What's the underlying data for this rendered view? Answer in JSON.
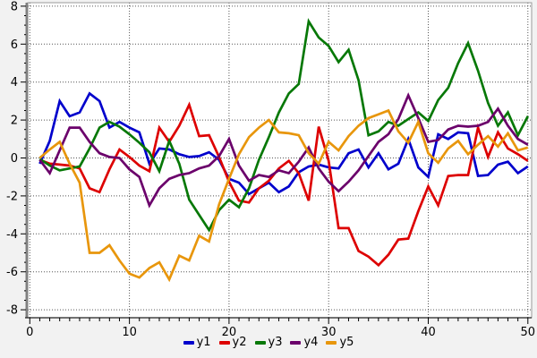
{
  "chart_data": {
    "type": "line",
    "title": "",
    "xlabel": "",
    "ylabel": "",
    "grid": true,
    "legend_position": "bottom",
    "x_ticks": [
      0,
      10,
      20,
      30,
      40,
      50
    ],
    "y_ticks": [
      -8,
      -6,
      -4,
      -2,
      0,
      2,
      4,
      6,
      8
    ],
    "xlim": [
      -0.2,
      50.4
    ],
    "ylim": [
      -8.4,
      8.2
    ],
    "x": [
      1,
      2,
      3,
      4,
      5,
      6,
      7,
      8,
      9,
      10,
      11,
      12,
      13,
      14,
      15,
      16,
      17,
      18,
      19,
      20,
      21,
      22,
      23,
      24,
      25,
      26,
      27,
      28,
      29,
      30,
      31,
      32,
      33,
      34,
      35,
      36,
      37,
      38,
      39,
      40,
      41,
      42,
      43,
      44,
      45,
      46,
      47,
      48,
      49,
      50
    ],
    "series": [
      {
        "name": "y1",
        "color": "#0000cc",
        "values": [
          -0.3,
          0.9,
          3.0,
          2.2,
          2.4,
          3.4,
          3.0,
          1.6,
          1.9,
          1.6,
          1.35,
          -0.3,
          0.5,
          0.45,
          0.2,
          0.05,
          0.1,
          0.3,
          -0.1,
          -1.1,
          -1.3,
          -1.9,
          -1.6,
          -1.3,
          -1.8,
          -1.5,
          -0.75,
          -0.45,
          -0.35,
          -0.5,
          -0.55,
          0.25,
          0.45,
          -0.5,
          0.25,
          -0.6,
          -0.3,
          1.0,
          -0.5,
          -1.0,
          1.25,
          1.0,
          1.35,
          1.3,
          -0.95,
          -0.9,
          -0.35,
          -0.2,
          -0.8,
          -0.45
        ]
      },
      {
        "name": "y2",
        "color": "#dd0000",
        "values": [
          -0.1,
          -0.3,
          -0.35,
          -0.4,
          -0.55,
          -1.6,
          -1.8,
          -0.6,
          0.45,
          0.05,
          -0.4,
          -0.7,
          1.6,
          0.85,
          1.7,
          2.8,
          1.15,
          1.2,
          0.05,
          -1.25,
          -2.25,
          -2.35,
          -1.6,
          -1.2,
          -0.55,
          -0.15,
          -0.8,
          -2.25,
          1.65,
          -0.15,
          -3.7,
          -3.7,
          -4.9,
          -5.2,
          -5.65,
          -5.1,
          -4.3,
          -4.25,
          -2.8,
          -1.5,
          -2.5,
          -0.95,
          -0.9,
          -0.9,
          1.6,
          0.05,
          1.35,
          0.5,
          0.2,
          -0.15
        ]
      },
      {
        "name": "y3",
        "color": "#077807",
        "values": [
          -0.05,
          -0.4,
          -0.65,
          -0.55,
          -0.45,
          0.5,
          1.6,
          1.9,
          1.65,
          1.25,
          0.8,
          0.3,
          -0.7,
          0.9,
          -0.3,
          -2.2,
          -3.0,
          -3.8,
          -2.75,
          -2.2,
          -2.6,
          -1.6,
          -0.1,
          1.1,
          2.4,
          3.4,
          3.9,
          7.2,
          6.35,
          5.9,
          5.05,
          5.7,
          4.1,
          1.2,
          1.4,
          1.9,
          1.7,
          2.05,
          2.4,
          1.95,
          3.05,
          3.7,
          5.0,
          6.05,
          4.6,
          2.9,
          1.7,
          2.4,
          1.2,
          2.2
        ]
      },
      {
        "name": "y4",
        "color": "#6b006b",
        "values": [
          -0.1,
          -0.8,
          0.4,
          1.6,
          1.6,
          0.85,
          0.25,
          0.05,
          0.0,
          -0.6,
          -1.0,
          -2.5,
          -1.6,
          -1.1,
          -0.9,
          -0.8,
          -0.55,
          -0.4,
          0.1,
          1.0,
          -0.4,
          -1.2,
          -0.9,
          -1.0,
          -0.65,
          -0.8,
          -0.2,
          0.55,
          -0.55,
          -1.25,
          -1.75,
          -1.25,
          -0.65,
          0.1,
          0.85,
          1.25,
          2.05,
          3.3,
          2.1,
          0.85,
          0.95,
          1.5,
          1.7,
          1.65,
          1.7,
          1.9,
          2.6,
          1.7,
          1.0,
          0.7
        ]
      },
      {
        "name": "y5",
        "color": "#e8960c",
        "values": [
          0.0,
          0.45,
          0.85,
          -0.3,
          -1.3,
          -5.0,
          -5.0,
          -4.6,
          -5.4,
          -6.1,
          -6.3,
          -5.8,
          -5.5,
          -6.4,
          -5.15,
          -5.4,
          -4.1,
          -4.4,
          -2.45,
          -1.1,
          0.2,
          1.1,
          1.6,
          2.0,
          1.35,
          1.3,
          1.2,
          0.25,
          -0.3,
          0.85,
          0.4,
          1.15,
          1.7,
          2.1,
          2.3,
          2.5,
          1.4,
          0.8,
          1.9,
          0.25,
          -0.25,
          0.5,
          0.9,
          0.2,
          0.7,
          1.15,
          0.6,
          1.3,
          0.4,
          0.55
        ]
      }
    ],
    "style": {
      "background": "#f2f2f2",
      "plot_background": "#ffffff",
      "grid_color": "#555555",
      "axis_bar_color": "#808080",
      "frame_color": "#999999",
      "bottom_axis_color": "#222222",
      "tick_color": "#000000",
      "tick_label_color": "#000000"
    }
  }
}
